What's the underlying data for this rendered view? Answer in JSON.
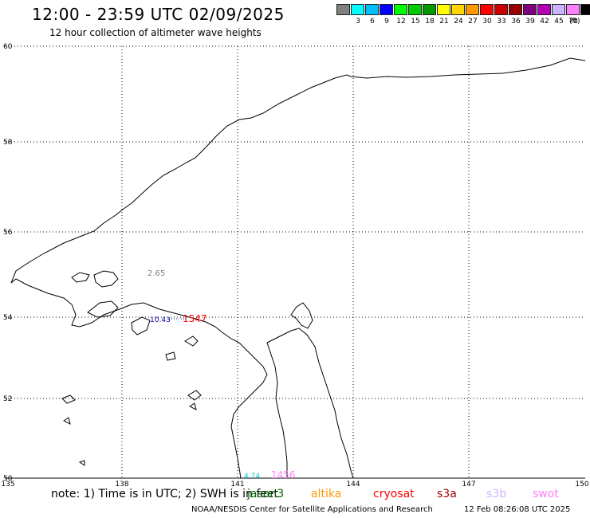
{
  "header": {
    "title": "12:00 - 23:59 UTC 02/09/2025",
    "subtitle": "12 hour collection of altimeter wave heights"
  },
  "scale": {
    "colors": [
      "#808080",
      "#00ffff",
      "#00bfff",
      "#0000ff",
      "#00ff00",
      "#00cc00",
      "#009900",
      "#ffff00",
      "#ffd700",
      "#ff9900",
      "#ff0000",
      "#cc0000",
      "#990000",
      "#7f007f",
      "#b300b3",
      "#ccb3ff",
      "#ff80ff",
      "#000000"
    ],
    "labels": [
      "",
      "3",
      "6",
      "9",
      "12",
      "15",
      "18",
      "21",
      "24",
      "27",
      "30",
      "33",
      "36",
      "39",
      "42",
      "45",
      "70",
      ""
    ],
    "unit": "(ft)"
  },
  "axes": {
    "lat_labels": [
      "60",
      "58",
      "56",
      "54",
      "52",
      "50"
    ],
    "lon_labels": [
      "135",
      "138",
      "141",
      "144",
      "147",
      "150"
    ]
  },
  "annotations": [
    {
      "text": "2.65",
      "color": "#808080"
    },
    {
      "text": "10.43",
      "color": "#0000aa"
    },
    {
      "text": "1547",
      "color": "#ff0000"
    },
    {
      "text": "4.74",
      "color": "#00cccc"
    },
    {
      "text": "1456",
      "color": "#ff80ff"
    }
  ],
  "footer": {
    "note": "note: 1) Time is in UTC; 2) SWH is in feet",
    "satellites": [
      {
        "name": "jason3",
        "color": "#006400"
      },
      {
        "name": "altika",
        "color": "#ff9900"
      },
      {
        "name": "cryosat",
        "color": "#ff0000"
      },
      {
        "name": "s3a",
        "color": "#990000"
      },
      {
        "name": "s3b",
        "color": "#ccb3ff"
      },
      {
        "name": "swot",
        "color": "#ff80ff"
      }
    ],
    "credit": "NOAA/NESDIS Center for Satellite Applications and Research",
    "timestamp": "12 Feb 08:26:08 UTC 2025"
  }
}
